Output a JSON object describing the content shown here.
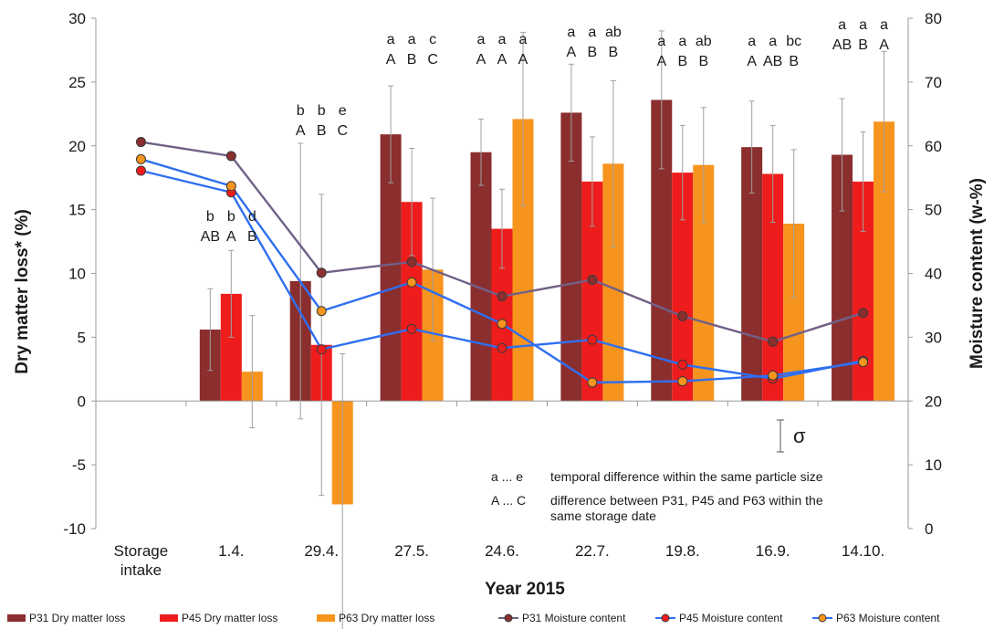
{
  "chart_data": {
    "type": "bar",
    "xlabel": "Year 2015",
    "ylabel": "Dry matter loss* (%)",
    "y2label": "Moisture content (w-%)",
    "ylim": [
      -10,
      30
    ],
    "y2lim": [
      0,
      80
    ],
    "yticks": [
      "-10",
      "-5",
      "0",
      "5",
      "10",
      "15",
      "20",
      "25",
      "30"
    ],
    "y2ticks": [
      "0",
      "10",
      "20",
      "30",
      "40",
      "50",
      "60",
      "70",
      "80"
    ],
    "categories": [
      "Storage intake",
      "1.4.",
      "29.4.",
      "27.5.",
      "24.6.",
      "22.7.",
      "19.8.",
      "16.9.",
      "14.10."
    ],
    "category_lines": [
      [
        "Storage",
        "intake"
      ],
      [
        "1.4."
      ],
      [
        "29.4."
      ],
      [
        "27.5."
      ],
      [
        "24.6."
      ],
      [
        "22.7."
      ],
      [
        "19.8."
      ],
      [
        "16.9."
      ],
      [
        "14.10."
      ]
    ],
    "bar_series": [
      {
        "name": "P31 Dry matter loss",
        "color": "#8b2e2e",
        "values": [
          null,
          5.6,
          9.4,
          20.9,
          19.5,
          22.6,
          23.6,
          19.9,
          19.3
        ],
        "err": [
          null,
          3.2,
          10.8,
          3.8,
          2.6,
          3.8,
          5.4,
          3.6,
          4.4
        ]
      },
      {
        "name": "P45 Dry matter loss",
        "color": "#ee1c1c",
        "values": [
          null,
          8.4,
          4.4,
          15.6,
          13.5,
          17.2,
          17.9,
          17.8,
          17.2
        ],
        "err": [
          null,
          3.4,
          11.8,
          4.2,
          3.1,
          3.5,
          3.7,
          3.8,
          3.9
        ]
      },
      {
        "name": "P63 Dry matter loss",
        "color": "#f7941d",
        "values": [
          null,
          2.3,
          -8.1,
          10.3,
          22.1,
          18.6,
          18.5,
          13.9,
          21.9
        ],
        "err": [
          null,
          4.4,
          11.8,
          5.6,
          6.8,
          6.5,
          4.5,
          5.8,
          5.5
        ]
      }
    ],
    "line_series": [
      {
        "name": "P31 Moisture content",
        "line_color": "#706088",
        "marker_color": "#8b2e2e",
        "values": [
          60.6,
          58.4,
          40.1,
          41.8,
          36.4,
          39.0,
          33.3,
          29.3,
          33.8
        ]
      },
      {
        "name": "P45 Moisture content",
        "line_color": "#2f6ff0",
        "marker_color": "#ee1c1c",
        "values": [
          56.1,
          52.7,
          28.1,
          31.3,
          28.3,
          29.6,
          25.7,
          23.5,
          26.3
        ]
      },
      {
        "name": "P63 Moisture content",
        "line_color": "#2f6ff0",
        "marker_color": "#f7941d",
        "values": [
          57.9,
          53.7,
          34.1,
          38.6,
          32.1,
          22.9,
          23.1,
          24.0,
          26.1
        ]
      }
    ],
    "letters_lower": [
      null,
      [
        "b",
        "b",
        "d"
      ],
      [
        "b",
        "b",
        "e"
      ],
      [
        "a",
        "a",
        "c"
      ],
      [
        "a",
        "a",
        "a"
      ],
      [
        "a",
        "a",
        "ab"
      ],
      [
        "a",
        "a",
        "ab"
      ],
      [
        "a",
        "a",
        "bc"
      ],
      [
        "a",
        "a",
        "a"
      ]
    ],
    "letters_upper": [
      null,
      [
        "AB",
        "A",
        "B"
      ],
      [
        "A",
        "B",
        "C"
      ],
      [
        "A",
        "B",
        "C"
      ],
      [
        "A",
        "A",
        "A"
      ],
      [
        "A",
        "B",
        "B"
      ],
      [
        "A",
        "B",
        "B"
      ],
      [
        "A",
        "AB",
        "B"
      ],
      [
        "AB",
        "B",
        "A"
      ]
    ],
    "sigma_label": "σ",
    "notes": [
      {
        "key": "a ... e",
        "text": [
          "temporal difference within the same particle size"
        ]
      },
      {
        "key": "A ... C",
        "text": [
          "difference between P31, P45 and P63 within the",
          "same storage date"
        ]
      }
    ],
    "legend_position": "bottom",
    "legend": [
      "P31 Dry matter loss",
      "P45 Dry matter loss",
      "P63 Dry matter loss",
      "P31 Moisture content",
      "P45 Moisture content",
      "P63 Moisture content"
    ],
    "grid": false
  }
}
